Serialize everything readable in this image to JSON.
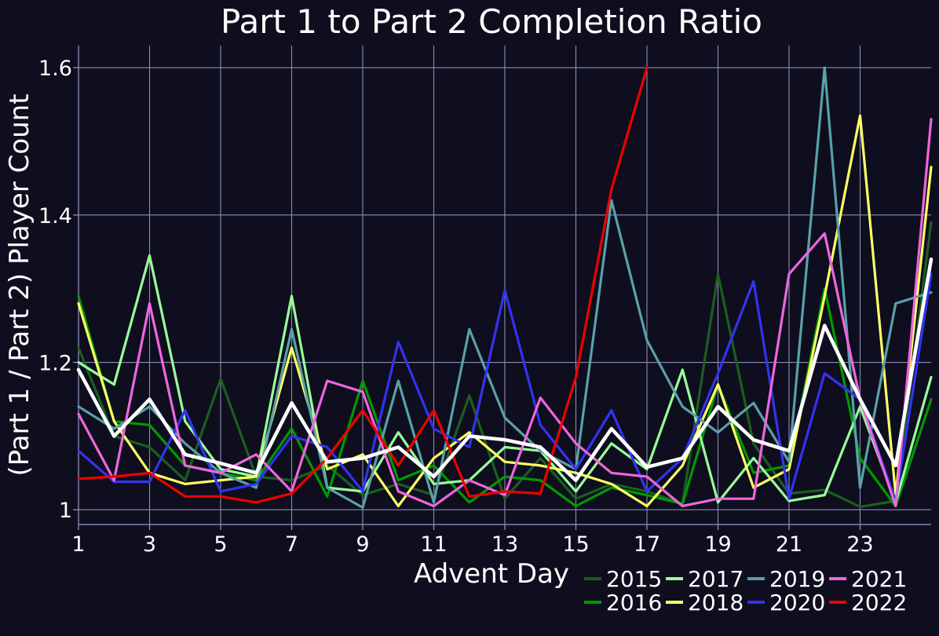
{
  "chart_data": {
    "type": "line",
    "title": "Part 1 to Part 2 Completion Ratio",
    "xlabel": "Advent Day",
    "ylabel": "(Part 1 / Part 2) Player Count",
    "xlim": [
      1,
      25
    ],
    "ylim": [
      0.98,
      1.63
    ],
    "x_ticks": [
      "1",
      "3",
      "5",
      "7",
      "9",
      "11",
      "13",
      "15",
      "17",
      "19",
      "21",
      "23"
    ],
    "y_ticks": [
      "1",
      "1.2",
      "1.4",
      "1.6"
    ],
    "grid": true,
    "legend_position": "bottom-right",
    "x": [
      1,
      2,
      3,
      4,
      5,
      6,
      7,
      8,
      9,
      10,
      11,
      12,
      13,
      14,
      15,
      16,
      17,
      18,
      19,
      20,
      21,
      22,
      23,
      24,
      25
    ],
    "series": [
      {
        "name": "2015",
        "color": "#1b5e20",
        "values": [
          1.22,
          1.1,
          1.085,
          1.04,
          1.178,
          1.045,
          1.04,
          1.06,
          1.02,
          1.035,
          1.02,
          1.155,
          1.015,
          1.07,
          1.015,
          1.035,
          1.025,
          1.008,
          1.32,
          1.09,
          1.022,
          1.027,
          1.004,
          1.012,
          1.39
        ]
      },
      {
        "name": "2016",
        "color": "#009900",
        "values": [
          1.29,
          1.12,
          1.115,
          1.06,
          1.05,
          1.04,
          1.11,
          1.018,
          1.175,
          1.04,
          1.06,
          1.01,
          1.045,
          1.04,
          1.005,
          1.03,
          1.02,
          1.008,
          1.17,
          1.05,
          1.06,
          1.3,
          1.07,
          1.005,
          1.15
        ]
      },
      {
        "name": "2017",
        "color": "#99ff99",
        "values": [
          1.2,
          1.17,
          1.345,
          1.12,
          1.055,
          1.045,
          1.29,
          1.03,
          1.025,
          1.105,
          1.035,
          1.04,
          1.085,
          1.08,
          1.025,
          1.09,
          1.055,
          1.19,
          1.01,
          1.07,
          1.012,
          1.02,
          1.14,
          1.01,
          1.18
        ]
      },
      {
        "name": "2018",
        "color": "#ffff66",
        "values": [
          1.28,
          1.12,
          1.05,
          1.035,
          1.04,
          1.045,
          1.22,
          1.055,
          1.075,
          1.005,
          1.07,
          1.105,
          1.065,
          1.06,
          1.05,
          1.035,
          1.005,
          1.06,
          1.17,
          1.03,
          1.055,
          1.29,
          1.535,
          1.02,
          1.465
        ]
      },
      {
        "name": "2019",
        "color": "#5aa0a8",
        "values": [
          1.14,
          1.11,
          1.14,
          1.09,
          1.05,
          1.03,
          1.245,
          1.03,
          1.003,
          1.175,
          1.01,
          1.245,
          1.125,
          1.08,
          1.055,
          1.42,
          1.23,
          1.14,
          1.105,
          1.145,
          1.065,
          1.6,
          1.03,
          1.28,
          1.295
        ]
      },
      {
        "name": "2020",
        "color": "#3333ee",
        "values": [
          1.08,
          1.038,
          1.038,
          1.135,
          1.025,
          1.035,
          1.1,
          1.085,
          1.025,
          1.228,
          1.11,
          1.085,
          1.298,
          1.115,
          1.055,
          1.135,
          1.025,
          1.07,
          1.185,
          1.31,
          1.015,
          1.185,
          1.15,
          1.012,
          1.32
        ]
      },
      {
        "name": "2021",
        "color": "#ee66dd",
        "values": [
          1.13,
          1.04,
          1.28,
          1.06,
          1.05,
          1.075,
          1.025,
          1.175,
          1.16,
          1.025,
          1.005,
          1.04,
          1.02,
          1.152,
          1.09,
          1.05,
          1.045,
          1.005,
          1.015,
          1.015,
          1.32,
          1.375,
          1.15,
          1.005,
          1.53
        ]
      },
      {
        "name": "2022",
        "color": "#ee0000",
        "values": [
          1.042,
          1.045,
          1.05,
          1.018,
          1.018,
          1.01,
          1.022,
          1.07,
          1.135,
          1.06,
          1.135,
          1.018,
          1.025,
          1.022,
          1.18,
          1.435,
          1.6,
          null,
          null,
          null,
          null,
          null,
          null,
          null,
          null
        ]
      },
      {
        "name": "",
        "color": "#ffffff",
        "values": [
          1.19,
          1.1,
          1.15,
          1.075,
          1.063,
          1.05,
          1.145,
          1.065,
          1.07,
          1.085,
          1.045,
          1.1,
          1.095,
          1.085,
          1.04,
          1.11,
          1.058,
          1.07,
          1.14,
          1.095,
          1.08,
          1.25,
          1.15,
          1.06,
          1.34
        ]
      }
    ]
  }
}
